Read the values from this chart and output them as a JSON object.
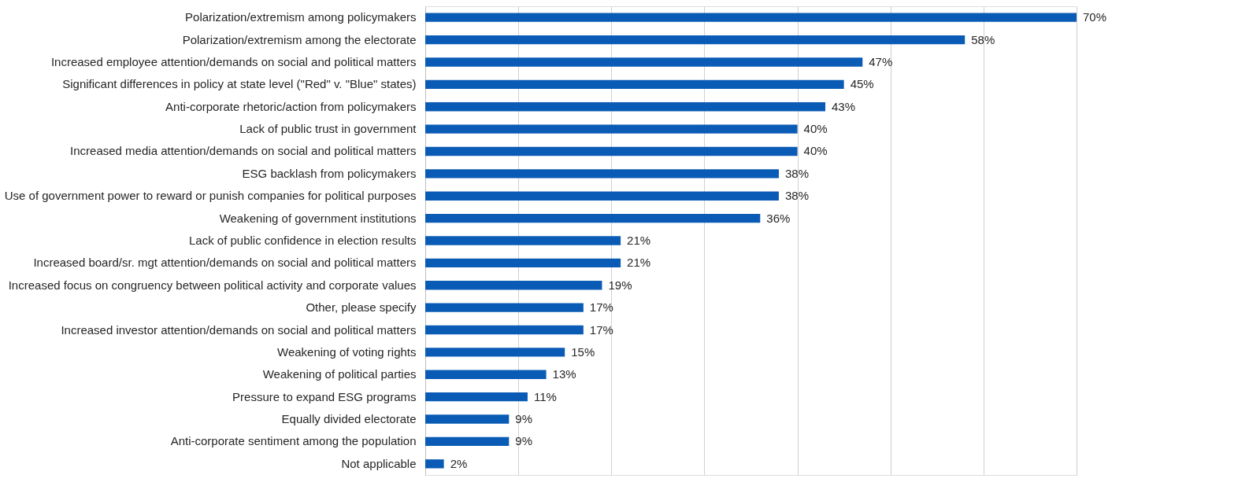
{
  "chart_data": {
    "type": "bar",
    "orientation": "horizontal",
    "categories": [
      "Polarization/extremism among policymakers",
      "Polarization/extremism among the electorate",
      "Increased employee attention/demands on social and political matters",
      "Significant differences in policy at state level (\"Red\" v. \"Blue\" states)",
      "Anti-corporate rhetoric/action from policymakers",
      "Lack of public trust in government",
      "Increased media attention/demands on social and political matters",
      "ESG backlash from policymakers",
      "Use of government power to reward or punish companies for political purposes",
      "Weakening of government institutions",
      "Lack of public confidence in election results",
      "Increased board/sr. mgt attention/demands on social and political matters",
      "Increased focus on congruency between political activity and corporate values",
      "Other, please specify",
      "Increased investor attention/demands on social and political matters",
      "Weakening of voting rights",
      "Weakening of political parties",
      "Pressure to expand ESG programs",
      "Equally divided electorate",
      "Anti-corporate sentiment among the population",
      "Not applicable"
    ],
    "values": [
      70,
      58,
      47,
      45,
      43,
      40,
      40,
      38,
      38,
      36,
      21,
      21,
      19,
      17,
      17,
      15,
      13,
      11,
      9,
      9,
      2
    ],
    "value_labels": [
      "70%",
      "58%",
      "47%",
      "45%",
      "43%",
      "40%",
      "40%",
      "38%",
      "38%",
      "36%",
      "21%",
      "21%",
      "19%",
      "17%",
      "17%",
      "15%",
      "13%",
      "11%",
      "9%",
      "9%",
      "2%"
    ],
    "color": "#0a5bb5",
    "xlim": [
      0,
      70
    ],
    "xticks": [
      0,
      10,
      20,
      30,
      40,
      50,
      60,
      70
    ],
    "tick_labels": "y",
    "grid": "x"
  }
}
